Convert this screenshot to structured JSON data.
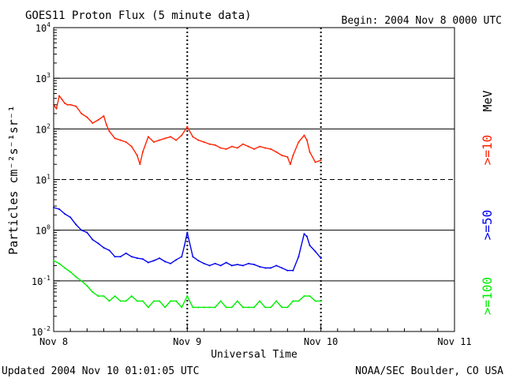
{
  "chart_data": {
    "type": "line",
    "title": "GOES11 Proton Flux (5 minute data)",
    "begin_label": "Begin: 2004 Nov 8 0000 UTC",
    "updated_label": "Updated 2004 Nov 10 01:01:05 UTC",
    "source_label": "NOAA/SEC Boulder, CO USA",
    "xlabel": "Universal Time",
    "ylabel": "Particles cm⁻²s⁻¹sr⁻¹",
    "x_unit": "hours since 2004 Nov 8 0000 UTC",
    "xlim": [
      0,
      72
    ],
    "xticks": [
      {
        "x": 0,
        "label": "Nov 8"
      },
      {
        "x": 24,
        "label": "Nov 9"
      },
      {
        "x": 48,
        "label": "Nov 10"
      },
      {
        "x": 72,
        "label": "Nov 11"
      }
    ],
    "ylim": [
      0.01,
      10000
    ],
    "yscale": "log",
    "yticks": [
      {
        "value": 10000,
        "base": "10",
        "exp": "4"
      },
      {
        "value": 1000,
        "base": "10",
        "exp": "3"
      },
      {
        "value": 100,
        "base": "10",
        "exp": "2"
      },
      {
        "value": 10,
        "base": "10",
        "exp": "1"
      },
      {
        "value": 1,
        "base": "10",
        "exp": "0"
      },
      {
        "value": 0.1,
        "base": "10",
        "exp": "-1"
      },
      {
        "value": 0.01,
        "base": "10",
        "exp": "-2"
      }
    ],
    "hlines": [
      {
        "value": 1000,
        "style": "solid"
      },
      {
        "value": 100,
        "style": "solid"
      },
      {
        "value": 10,
        "style": "dashed"
      },
      {
        "value": 1,
        "style": "solid"
      },
      {
        "value": 0.1,
        "style": "solid"
      }
    ],
    "vmarkers_x": [
      24,
      48
    ],
    "series": [
      {
        "name": ">=10 MeV",
        "legend_label": ">=10",
        "unit_label": "MeV",
        "color": "#ff2200",
        "x": [
          0,
          0.5,
          1,
          1.5,
          2,
          2.5,
          3,
          4,
          5,
          6,
          7,
          8,
          9,
          9.5,
          10,
          11,
          12,
          13,
          14,
          15,
          15.5,
          16,
          17,
          18,
          19,
          20,
          21,
          22,
          23,
          24,
          25,
          26,
          27,
          28,
          29,
          30,
          31,
          32,
          33,
          34,
          35,
          36,
          37,
          38,
          39,
          40,
          41,
          42,
          42.5,
          43,
          44,
          45,
          45.5,
          46,
          47,
          48
        ],
        "values": [
          300,
          250,
          450,
          380,
          320,
          300,
          300,
          280,
          200,
          170,
          130,
          150,
          180,
          120,
          90,
          65,
          60,
          55,
          45,
          30,
          20,
          35,
          70,
          55,
          60,
          65,
          70,
          60,
          75,
          110,
          70,
          60,
          55,
          50,
          48,
          42,
          40,
          45,
          42,
          50,
          45,
          40,
          45,
          42,
          40,
          35,
          30,
          28,
          20,
          30,
          55,
          75,
          60,
          35,
          22,
          24
        ]
      },
      {
        "name": ">=50 MeV",
        "legend_label": ">=50",
        "unit_label": "",
        "color": "#0000ee",
        "x": [
          0,
          1,
          2,
          3,
          4,
          5,
          6,
          7,
          8,
          9,
          10,
          11,
          12,
          13,
          14,
          15,
          16,
          17,
          18,
          19,
          20,
          21,
          22,
          23,
          23.5,
          24,
          25,
          26,
          27,
          28,
          29,
          30,
          31,
          32,
          33,
          34,
          35,
          36,
          37,
          38,
          39,
          40,
          41,
          42,
          43,
          44,
          45,
          45.5,
          46,
          47,
          48
        ],
        "values": [
          2.8,
          2.6,
          2.1,
          1.8,
          1.3,
          1.0,
          0.9,
          0.65,
          0.55,
          0.45,
          0.4,
          0.3,
          0.3,
          0.35,
          0.3,
          0.28,
          0.27,
          0.23,
          0.25,
          0.28,
          0.24,
          0.22,
          0.26,
          0.3,
          0.5,
          0.9,
          0.3,
          0.25,
          0.22,
          0.2,
          0.22,
          0.2,
          0.23,
          0.2,
          0.21,
          0.2,
          0.22,
          0.21,
          0.19,
          0.18,
          0.18,
          0.2,
          0.18,
          0.16,
          0.16,
          0.3,
          0.85,
          0.75,
          0.5,
          0.38,
          0.28
        ]
      },
      {
        "name": ">=100 MeV",
        "legend_label": ">=100",
        "unit_label": "",
        "color": "#00ee00",
        "x": [
          0,
          1,
          2,
          3,
          4,
          5,
          6,
          7,
          8,
          9,
          10,
          11,
          12,
          13,
          14,
          15,
          16,
          17,
          18,
          19,
          20,
          21,
          22,
          23,
          24,
          25,
          26,
          27,
          28,
          29,
          30,
          31,
          32,
          33,
          34,
          35,
          36,
          37,
          38,
          39,
          40,
          41,
          42,
          43,
          44,
          45,
          46,
          47,
          48
        ],
        "values": [
          0.25,
          0.22,
          0.18,
          0.15,
          0.12,
          0.1,
          0.08,
          0.06,
          0.05,
          0.05,
          0.04,
          0.05,
          0.04,
          0.04,
          0.05,
          0.04,
          0.04,
          0.03,
          0.04,
          0.04,
          0.03,
          0.04,
          0.04,
          0.03,
          0.05,
          0.03,
          0.03,
          0.03,
          0.03,
          0.03,
          0.04,
          0.03,
          0.03,
          0.04,
          0.03,
          0.03,
          0.03,
          0.04,
          0.03,
          0.03,
          0.04,
          0.03,
          0.03,
          0.04,
          0.04,
          0.05,
          0.05,
          0.04,
          0.04
        ]
      }
    ]
  }
}
